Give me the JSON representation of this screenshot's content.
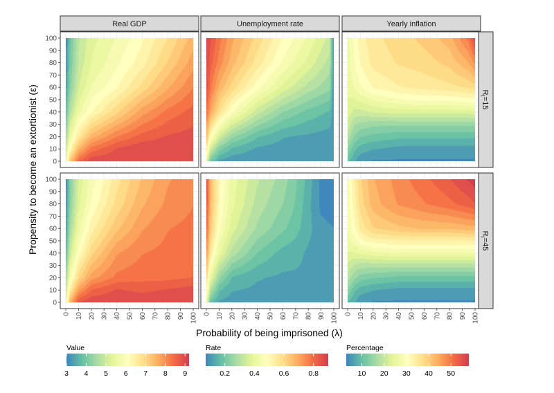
{
  "chart_data": {
    "type": "heatmap",
    "xlabel": "Probability of being imprisoned (λ)",
    "ylabel": "Propensity to become an extortionist (ε)",
    "x_ticks": [
      0,
      10,
      20,
      30,
      40,
      50,
      60,
      70,
      80,
      90,
      100
    ],
    "y_ticks": [
      0,
      10,
      20,
      30,
      40,
      50,
      60,
      70,
      80,
      90,
      100
    ],
    "xlim": [
      0,
      100
    ],
    "ylim": [
      0,
      100
    ],
    "grid": true,
    "facet_columns": [
      "Real GDP",
      "Unemployment rate",
      "Yearly inflation"
    ],
    "facet_rows": [
      {
        "label_main": "R",
        "label_sub": "I",
        "label_value": "=15"
      },
      {
        "label_main": "R",
        "label_sub": "I",
        "label_value": "=45"
      }
    ],
    "legends": [
      {
        "title": "Value",
        "range": [
          3,
          9.2
        ],
        "ticks": [
          3,
          4,
          5,
          6,
          7,
          8,
          9
        ],
        "labels": [
          "3",
          "4",
          "5",
          "6",
          "7",
          "8",
          "9"
        ]
      },
      {
        "title": "Rate",
        "range": [
          0.07,
          0.9
        ],
        "ticks": [
          0.2,
          0.4,
          0.6,
          0.8
        ],
        "labels": [
          "0.2",
          "0.4",
          "0.6",
          "0.8"
        ]
      },
      {
        "title": "Percentage",
        "range": [
          3,
          58
        ],
        "ticks": [
          10,
          20,
          30,
          40,
          50
        ],
        "labels": [
          "10",
          "20",
          "30",
          "40",
          "50"
        ]
      }
    ],
    "palette": [
      "#3f87bc",
      "#66c2a5",
      "#abdda4",
      "#e6f598",
      "#ffffbf",
      "#fee08b",
      "#fdae61",
      "#f46d43",
      "#d53e4f"
    ],
    "panels": [
      {
        "row": 0,
        "col": 0,
        "metric": "Real GDP",
        "legend": 0,
        "y_values": [
          0,
          10,
          20,
          40,
          60,
          80,
          100
        ],
        "x_values": [
          0,
          3,
          10,
          20,
          40,
          60,
          80,
          100
        ],
        "z": [
          [
            5.5,
            7.2,
            8.5,
            9.0,
            9.0,
            9.0,
            9.0,
            9.0
          ],
          [
            5.0,
            6.2,
            7.5,
            8.3,
            8.8,
            9.0,
            9.0,
            9.0
          ],
          [
            4.5,
            5.5,
            6.6,
            7.5,
            8.2,
            8.6,
            8.8,
            8.9
          ],
          [
            3.8,
            4.7,
            5.6,
            6.2,
            7.0,
            7.8,
            8.3,
            8.6
          ],
          [
            3.4,
            4.2,
            5.1,
            5.7,
            6.2,
            6.9,
            7.6,
            8.2
          ],
          [
            3.2,
            4.0,
            4.9,
            5.4,
            5.9,
            6.4,
            7.1,
            7.8
          ],
          [
            3.1,
            3.9,
            4.8,
            5.3,
            5.7,
            6.2,
            6.8,
            7.5
          ]
        ]
      },
      {
        "row": 0,
        "col": 1,
        "metric": "Unemployment rate",
        "legend": 1,
        "y_values": [
          0,
          10,
          20,
          40,
          60,
          80,
          100
        ],
        "x_values": [
          0,
          3,
          10,
          20,
          40,
          60,
          80,
          97,
          100
        ],
        "z": [
          [
            0.4,
            0.2,
            0.12,
            0.1,
            0.1,
            0.1,
            0.1,
            0.1,
            0.1
          ],
          [
            0.55,
            0.35,
            0.22,
            0.16,
            0.12,
            0.11,
            0.1,
            0.1,
            0.1
          ],
          [
            0.65,
            0.5,
            0.35,
            0.25,
            0.17,
            0.13,
            0.12,
            0.11,
            0.11
          ],
          [
            0.8,
            0.7,
            0.58,
            0.47,
            0.33,
            0.24,
            0.19,
            0.16,
            0.1
          ],
          [
            0.86,
            0.78,
            0.68,
            0.6,
            0.48,
            0.38,
            0.3,
            0.25,
            0.1
          ],
          [
            0.88,
            0.82,
            0.75,
            0.67,
            0.56,
            0.46,
            0.38,
            0.3,
            0.1
          ],
          [
            0.89,
            0.85,
            0.78,
            0.7,
            0.6,
            0.5,
            0.42,
            0.34,
            0.1
          ]
        ]
      },
      {
        "row": 0,
        "col": 2,
        "metric": "Yearly inflation",
        "legend": 2,
        "y_values": [
          0,
          10,
          20,
          30,
          40,
          50,
          60,
          80,
          100
        ],
        "x_values": [
          0,
          5,
          10,
          20,
          40,
          60,
          80,
          95,
          100
        ],
        "z": [
          [
            10,
            7,
            5,
            4,
            4,
            4,
            4,
            4,
            4
          ],
          [
            14,
            10,
            8,
            7,
            6,
            6,
            6,
            6,
            6
          ],
          [
            18,
            14,
            12,
            11,
            10,
            10,
            10,
            10,
            10
          ],
          [
            21,
            17,
            16,
            15,
            15,
            15,
            15,
            15,
            15
          ],
          [
            23,
            21,
            21,
            22,
            23,
            23,
            23,
            23,
            24
          ],
          [
            24,
            24,
            25,
            27,
            29,
            30,
            30,
            31,
            31
          ],
          [
            25,
            27,
            29,
            32,
            34,
            35,
            36,
            37,
            38
          ],
          [
            26,
            29,
            32,
            35,
            37,
            38,
            40,
            44,
            47
          ],
          [
            26,
            30,
            33,
            36,
            38,
            40,
            43,
            50,
            56
          ]
        ]
      },
      {
        "row": 1,
        "col": 0,
        "metric": "Real GDP",
        "legend": 0,
        "y_values": [
          0,
          10,
          20,
          40,
          60,
          80,
          100
        ],
        "x_values": [
          0,
          3,
          10,
          20,
          40,
          60,
          80,
          100
        ],
        "z": [
          [
            5.5,
            7.5,
            8.8,
            9.0,
            9.0,
            9.0,
            9.0,
            9.0
          ],
          [
            5.0,
            6.5,
            7.8,
            8.5,
            8.8,
            8.7,
            8.8,
            8.9
          ],
          [
            4.5,
            5.8,
            7.0,
            7.8,
            8.3,
            8.4,
            8.4,
            8.5
          ],
          [
            3.8,
            5.0,
            6.1,
            7.0,
            7.9,
            8.2,
            8.3,
            8.4
          ],
          [
            3.4,
            4.5,
            5.6,
            6.4,
            7.3,
            7.9,
            8.2,
            8.3
          ],
          [
            3.2,
            4.2,
            5.3,
            6.0,
            6.9,
            7.6,
            8.0,
            8.2
          ],
          [
            3.1,
            4.1,
            5.2,
            5.8,
            6.7,
            7.4,
            7.9,
            8.1
          ]
        ]
      },
      {
        "row": 1,
        "col": 1,
        "metric": "Unemployment rate",
        "legend": 1,
        "y_values": [
          0,
          10,
          20,
          40,
          60,
          80,
          100
        ],
        "x_values": [
          0,
          3,
          10,
          20,
          40,
          60,
          70,
          80,
          90,
          100
        ],
        "z": [
          [
            0.4,
            0.18,
            0.12,
            0.11,
            0.11,
            0.11,
            0.11,
            0.11,
            0.11,
            0.11
          ],
          [
            0.5,
            0.3,
            0.17,
            0.13,
            0.12,
            0.12,
            0.12,
            0.12,
            0.12,
            0.12
          ],
          [
            0.58,
            0.4,
            0.25,
            0.16,
            0.13,
            0.12,
            0.12,
            0.12,
            0.12,
            0.12
          ],
          [
            0.72,
            0.55,
            0.4,
            0.3,
            0.2,
            0.15,
            0.14,
            0.12,
            0.11,
            0.11
          ],
          [
            0.8,
            0.63,
            0.47,
            0.37,
            0.27,
            0.21,
            0.18,
            0.14,
            0.1,
            0.09
          ],
          [
            0.84,
            0.66,
            0.5,
            0.4,
            0.3,
            0.24,
            0.2,
            0.14,
            0.08,
            0.07
          ],
          [
            0.85,
            0.67,
            0.51,
            0.41,
            0.32,
            0.26,
            0.21,
            0.15,
            0.08,
            0.07
          ]
        ]
      },
      {
        "row": 1,
        "col": 2,
        "metric": "Yearly inflation",
        "legend": 2,
        "y_values": [
          0,
          10,
          20,
          30,
          40,
          50,
          60,
          80,
          100
        ],
        "x_values": [
          0,
          5,
          10,
          20,
          40,
          60,
          80,
          95,
          100
        ],
        "z": [
          [
            9,
            7,
            5,
            4,
            4,
            4,
            4,
            4,
            4
          ],
          [
            14,
            10,
            8,
            7,
            6,
            6,
            6,
            6,
            6
          ],
          [
            18,
            15,
            13,
            12,
            11,
            11,
            11,
            11,
            11
          ],
          [
            21,
            19,
            18,
            18,
            18,
            18,
            18,
            18,
            18
          ],
          [
            24,
            24,
            25,
            26,
            27,
            27,
            27,
            27,
            27
          ],
          [
            26,
            28,
            31,
            33,
            34,
            34,
            34,
            34,
            34
          ],
          [
            27,
            31,
            35,
            39,
            41,
            42,
            42,
            43,
            43
          ],
          [
            28,
            33,
            38,
            43,
            47,
            49,
            51,
            53,
            54
          ],
          [
            28,
            34,
            39,
            44,
            48,
            51,
            54,
            57,
            58
          ]
        ]
      }
    ]
  }
}
